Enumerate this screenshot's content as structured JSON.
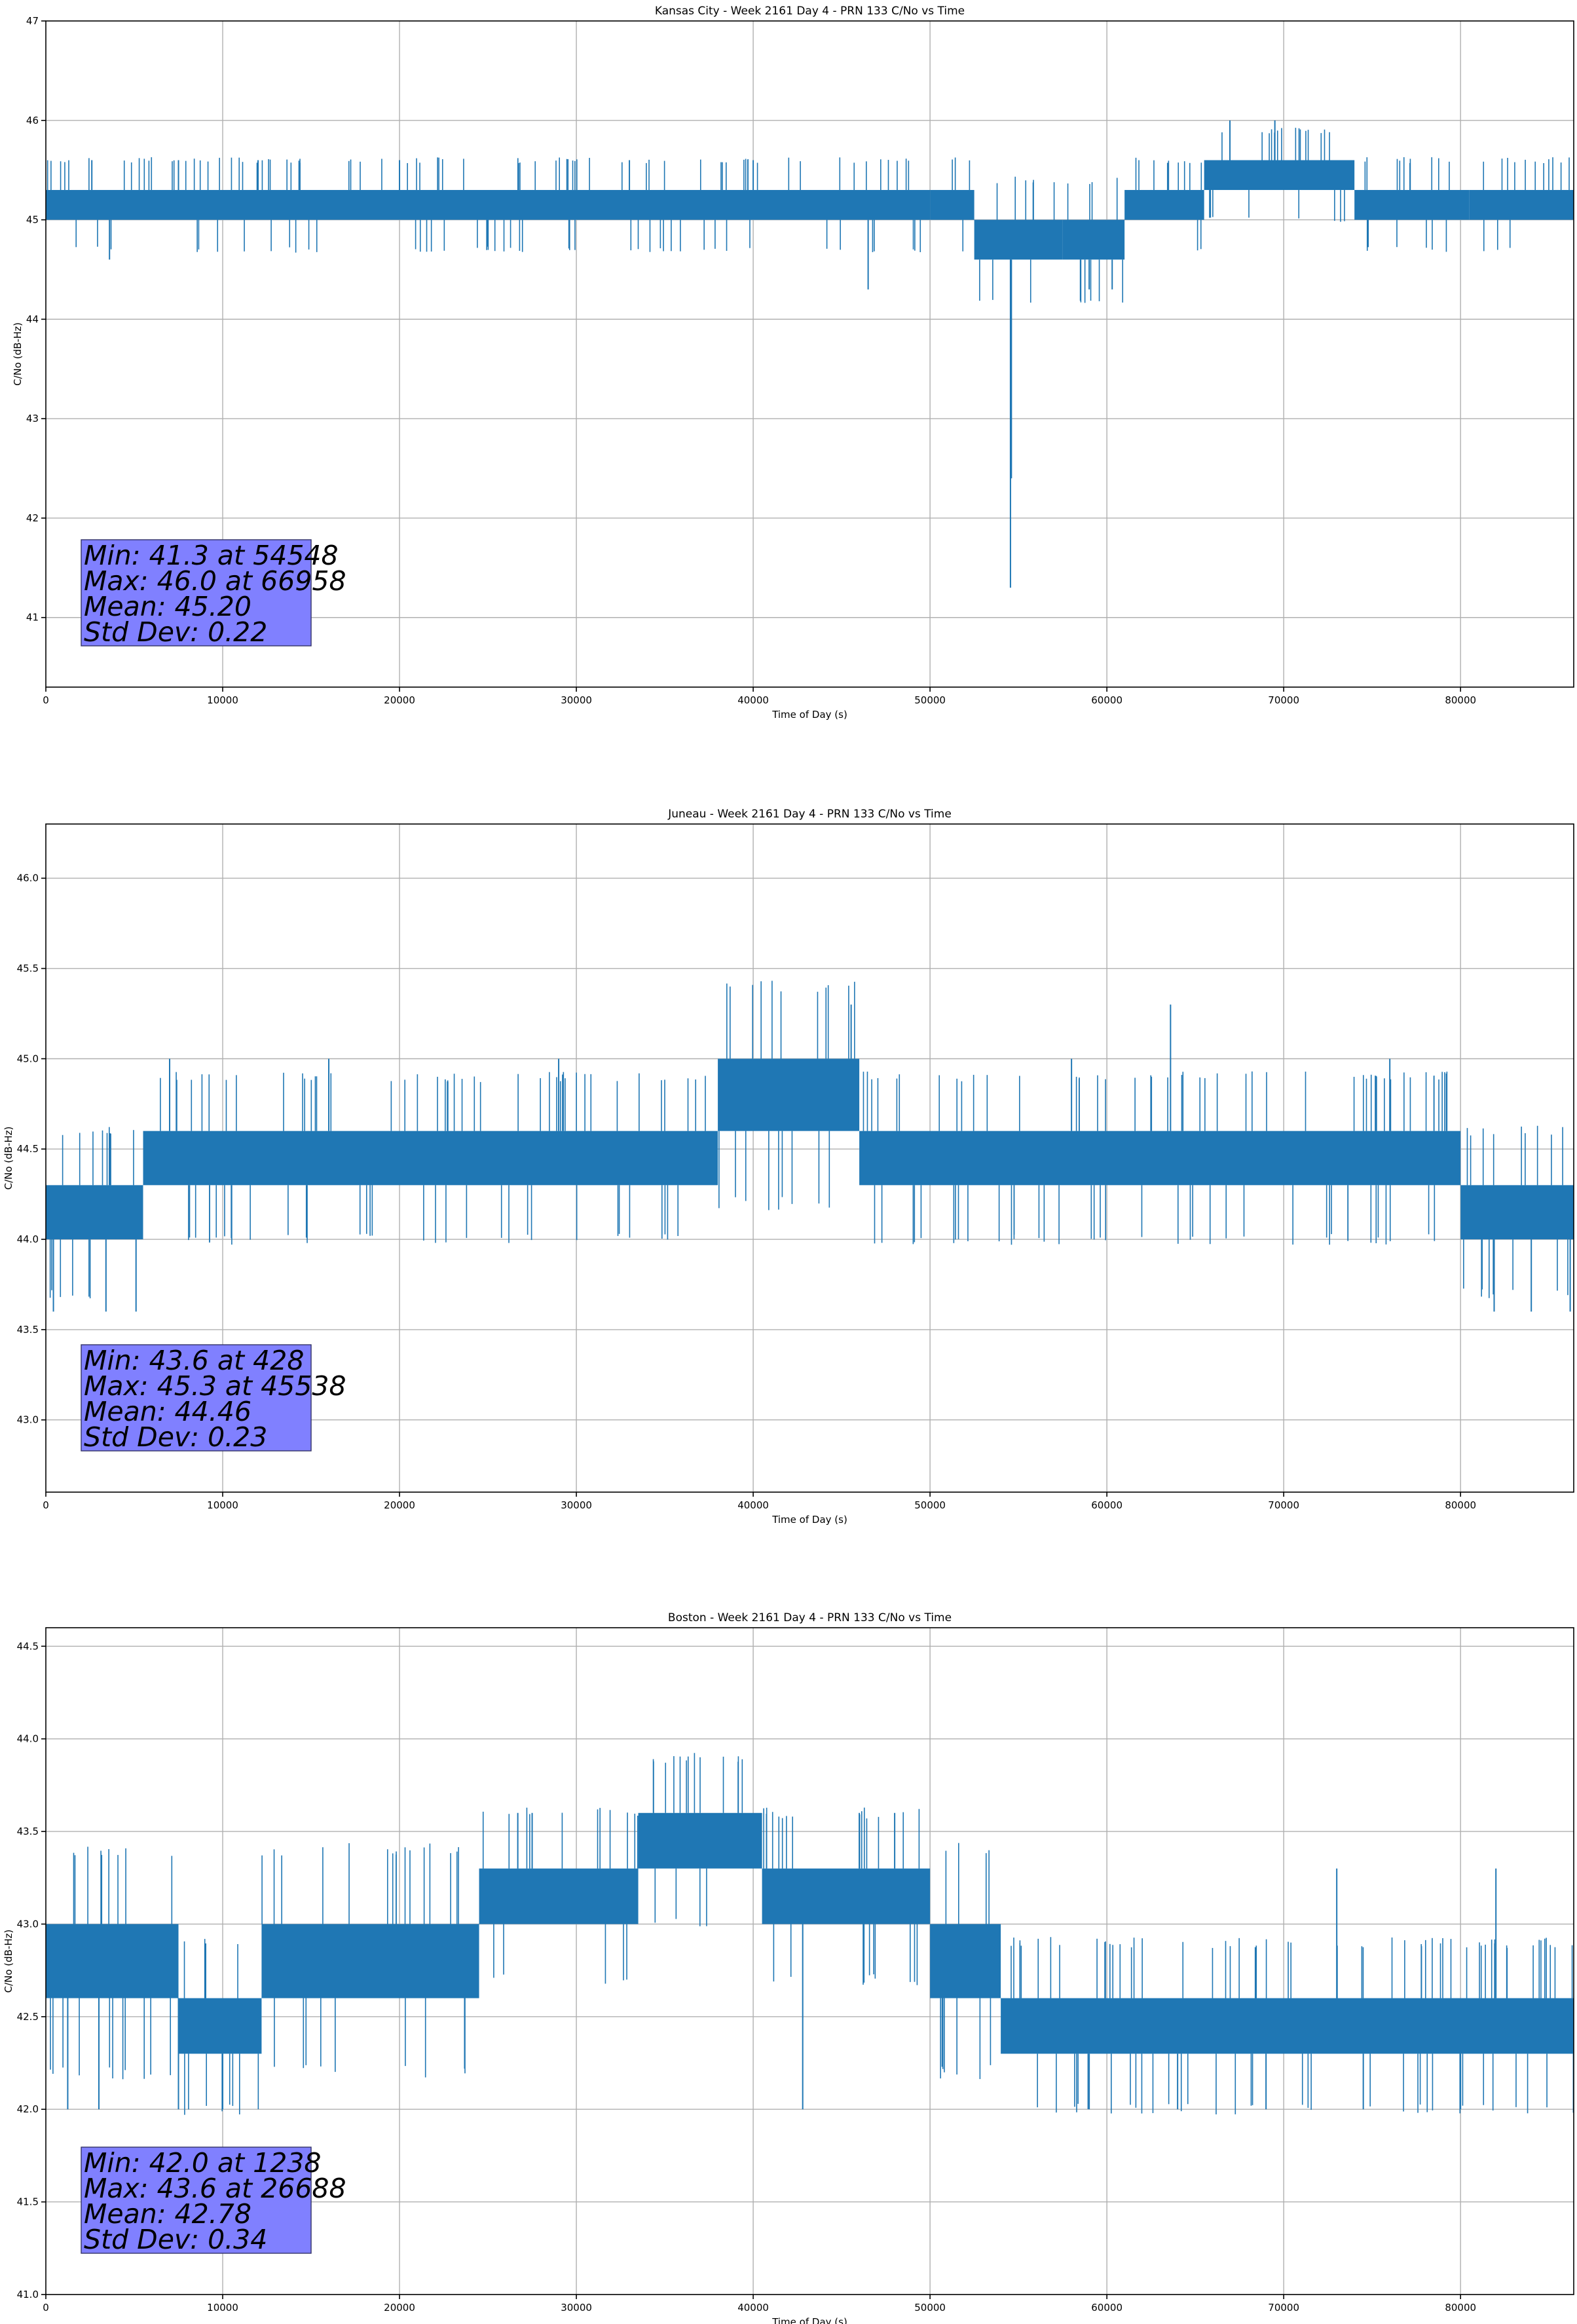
{
  "chart_data": [
    {
      "type": "line",
      "title": "Kansas City - Week 2161 Day 4 - PRN 133 C/No vs Time",
      "xlabel": "Time of Day (s)",
      "ylabel": "C/No (dB-Hz)",
      "xlim": [
        0,
        86400
      ],
      "ylim": [
        40.3,
        47.0
      ],
      "xticks": [
        0,
        10000,
        20000,
        30000,
        40000,
        50000,
        60000,
        70000,
        80000
      ],
      "yticks": [
        41,
        42,
        43,
        44,
        45,
        46,
        47
      ],
      "ytick_decimals": 0,
      "grid": true,
      "series_color": "#1f77b4",
      "stats_box_color": "#8080ff",
      "stats": [
        "Min: 41.3 at 54548",
        "Max: 46.0 at 66958",
        "Mean: 45.20",
        "Std Dev: 0.22"
      ],
      "bands": [
        {
          "x": [
            0,
            50000
          ],
          "low": 45.0,
          "high": 45.3
        },
        {
          "x": [
            50000,
            52500
          ],
          "low": 45.0,
          "high": 45.3
        },
        {
          "x": [
            52500,
            57500
          ],
          "low": 44.6,
          "high": 45.0
        },
        {
          "x": [
            57500,
            61000
          ],
          "low": 44.6,
          "high": 45.0
        },
        {
          "x": [
            61000,
            65500
          ],
          "low": 45.0,
          "high": 45.3
        },
        {
          "x": [
            65500,
            74000
          ],
          "low": 45.3,
          "high": 45.6
        },
        {
          "x": [
            74000,
            80500
          ],
          "low": 45.0,
          "high": 45.3
        },
        {
          "x": [
            80500,
            86400
          ],
          "low": 45.0,
          "high": 45.3
        }
      ],
      "spikes": [
        {
          "x": 54548,
          "y": 41.3
        },
        {
          "x": 54600,
          "y": 42.4
        },
        {
          "x": 46500,
          "y": 44.3
        },
        {
          "x": 3600,
          "y": 44.6
        },
        {
          "x": 59000,
          "y": 44.3
        },
        {
          "x": 60300,
          "y": 44.3
        },
        {
          "x": 66958,
          "y": 46.0
        },
        {
          "x": 69500,
          "y": 46.0
        },
        {
          "x": 2600,
          "y": 45.6
        },
        {
          "x": 7500,
          "y": 45.6
        },
        {
          "x": 12000,
          "y": 45.6
        },
        {
          "x": 20000,
          "y": 45.6
        },
        {
          "x": 33000,
          "y": 45.6
        },
        {
          "x": 40000,
          "y": 45.6
        }
      ]
    },
    {
      "type": "line",
      "title": "Juneau - Week 2161 Day 4 - PRN 133 C/No vs Time",
      "xlabel": "Time of Day (s)",
      "ylabel": "C/No (dB-Hz)",
      "xlim": [
        0,
        86400
      ],
      "ylim": [
        42.6,
        46.3
      ],
      "xticks": [
        0,
        10000,
        20000,
        30000,
        40000,
        50000,
        60000,
        70000,
        80000
      ],
      "yticks": [
        43.0,
        43.5,
        44.0,
        44.5,
        45.0,
        45.5,
        46.0
      ],
      "ytick_decimals": 1,
      "grid": true,
      "series_color": "#1f77b4",
      "stats_box_color": "#8080ff",
      "stats": [
        "Min: 43.6 at 428",
        "Max: 45.3 at 45538",
        "Mean: 44.46",
        "Std Dev: 0.23"
      ],
      "bands": [
        {
          "x": [
            0,
            5500
          ],
          "low": 44.0,
          "high": 44.3
        },
        {
          "x": [
            5500,
            38000
          ],
          "low": 44.3,
          "high": 44.6
        },
        {
          "x": [
            38000,
            46000
          ],
          "low": 44.6,
          "high": 45.0
        },
        {
          "x": [
            46000,
            80000
          ],
          "low": 44.3,
          "high": 44.6
        },
        {
          "x": [
            80000,
            86400
          ],
          "low": 44.0,
          "high": 44.3
        }
      ],
      "spikes": [
        {
          "x": 428,
          "y": 43.6
        },
        {
          "x": 3400,
          "y": 43.6
        },
        {
          "x": 5100,
          "y": 43.6
        },
        {
          "x": 45538,
          "y": 45.3
        },
        {
          "x": 63600,
          "y": 45.3
        },
        {
          "x": 81900,
          "y": 43.6
        },
        {
          "x": 84000,
          "y": 43.6
        },
        {
          "x": 86200,
          "y": 43.6
        },
        {
          "x": 7000,
          "y": 45.0
        },
        {
          "x": 16000,
          "y": 45.0
        },
        {
          "x": 29000,
          "y": 45.0
        },
        {
          "x": 58000,
          "y": 45.0
        },
        {
          "x": 76000,
          "y": 45.0
        }
      ]
    },
    {
      "type": "line",
      "title": "Boston - Week 2161 Day 4 - PRN 133 C/No vs Time",
      "xlabel": "Time of Day (s)",
      "ylabel": "C/No (dB-Hz)",
      "xlim": [
        0,
        86400
      ],
      "ylim": [
        41.0,
        44.6
      ],
      "xticks": [
        0,
        10000,
        20000,
        30000,
        40000,
        50000,
        60000,
        70000,
        80000
      ],
      "yticks": [
        41.0,
        41.5,
        42.0,
        42.5,
        43.0,
        43.5,
        44.0,
        44.5
      ],
      "ytick_decimals": 1,
      "grid": true,
      "series_color": "#1f77b4",
      "stats_box_color": "#8080ff",
      "stats": [
        "Min: 42.0 at 1238",
        "Max: 43.6 at 26688",
        "Mean: 42.78",
        "Std Dev: 0.34"
      ],
      "bands": [
        {
          "x": [
            0,
            7500
          ],
          "low": 42.6,
          "high": 43.0
        },
        {
          "x": [
            7500,
            12200
          ],
          "low": 42.3,
          "high": 42.6
        },
        {
          "x": [
            12200,
            24500
          ],
          "low": 42.6,
          "high": 43.0
        },
        {
          "x": [
            24500,
            33500
          ],
          "low": 43.0,
          "high": 43.3
        },
        {
          "x": [
            33500,
            40500
          ],
          "low": 43.3,
          "high": 43.6
        },
        {
          "x": [
            40500,
            50000
          ],
          "low": 43.0,
          "high": 43.3
        },
        {
          "x": [
            50000,
            54000
          ],
          "low": 42.6,
          "high": 43.0
        },
        {
          "x": [
            54000,
            86400
          ],
          "low": 42.3,
          "high": 42.6
        }
      ],
      "spikes": [
        {
          "x": 1238,
          "y": 42.0
        },
        {
          "x": 3000,
          "y": 42.0
        },
        {
          "x": 7500,
          "y": 42.0
        },
        {
          "x": 10000,
          "y": 42.0
        },
        {
          "x": 26688,
          "y": 43.6
        },
        {
          "x": 27500,
          "y": 43.6
        },
        {
          "x": 46000,
          "y": 43.6
        },
        {
          "x": 48000,
          "y": 43.6
        },
        {
          "x": 42800,
          "y": 42.0
        },
        {
          "x": 59000,
          "y": 42.0
        },
        {
          "x": 64000,
          "y": 42.0
        },
        {
          "x": 69000,
          "y": 42.0
        },
        {
          "x": 74500,
          "y": 42.0
        },
        {
          "x": 80000,
          "y": 42.0
        },
        {
          "x": 73000,
          "y": 43.3
        },
        {
          "x": 82000,
          "y": 43.3
        }
      ]
    }
  ]
}
